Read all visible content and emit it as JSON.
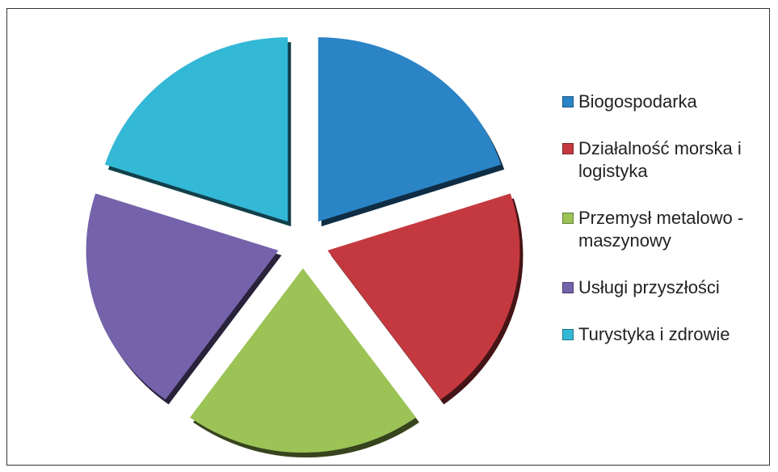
{
  "chart_data": {
    "type": "pie",
    "categories": [
      "Biogospodarka",
      "Działalność morska i logistyka",
      "Przemysł metalowo - maszynowy",
      "Usługi przyszłości",
      "Turystyka i zdrowie"
    ],
    "values": [
      20,
      20,
      20,
      20,
      20
    ],
    "colors": [
      "#2b84c6",
      "#c4393f",
      "#9cc356",
      "#7462aa",
      "#33b8d6"
    ],
    "legend": "right"
  }
}
